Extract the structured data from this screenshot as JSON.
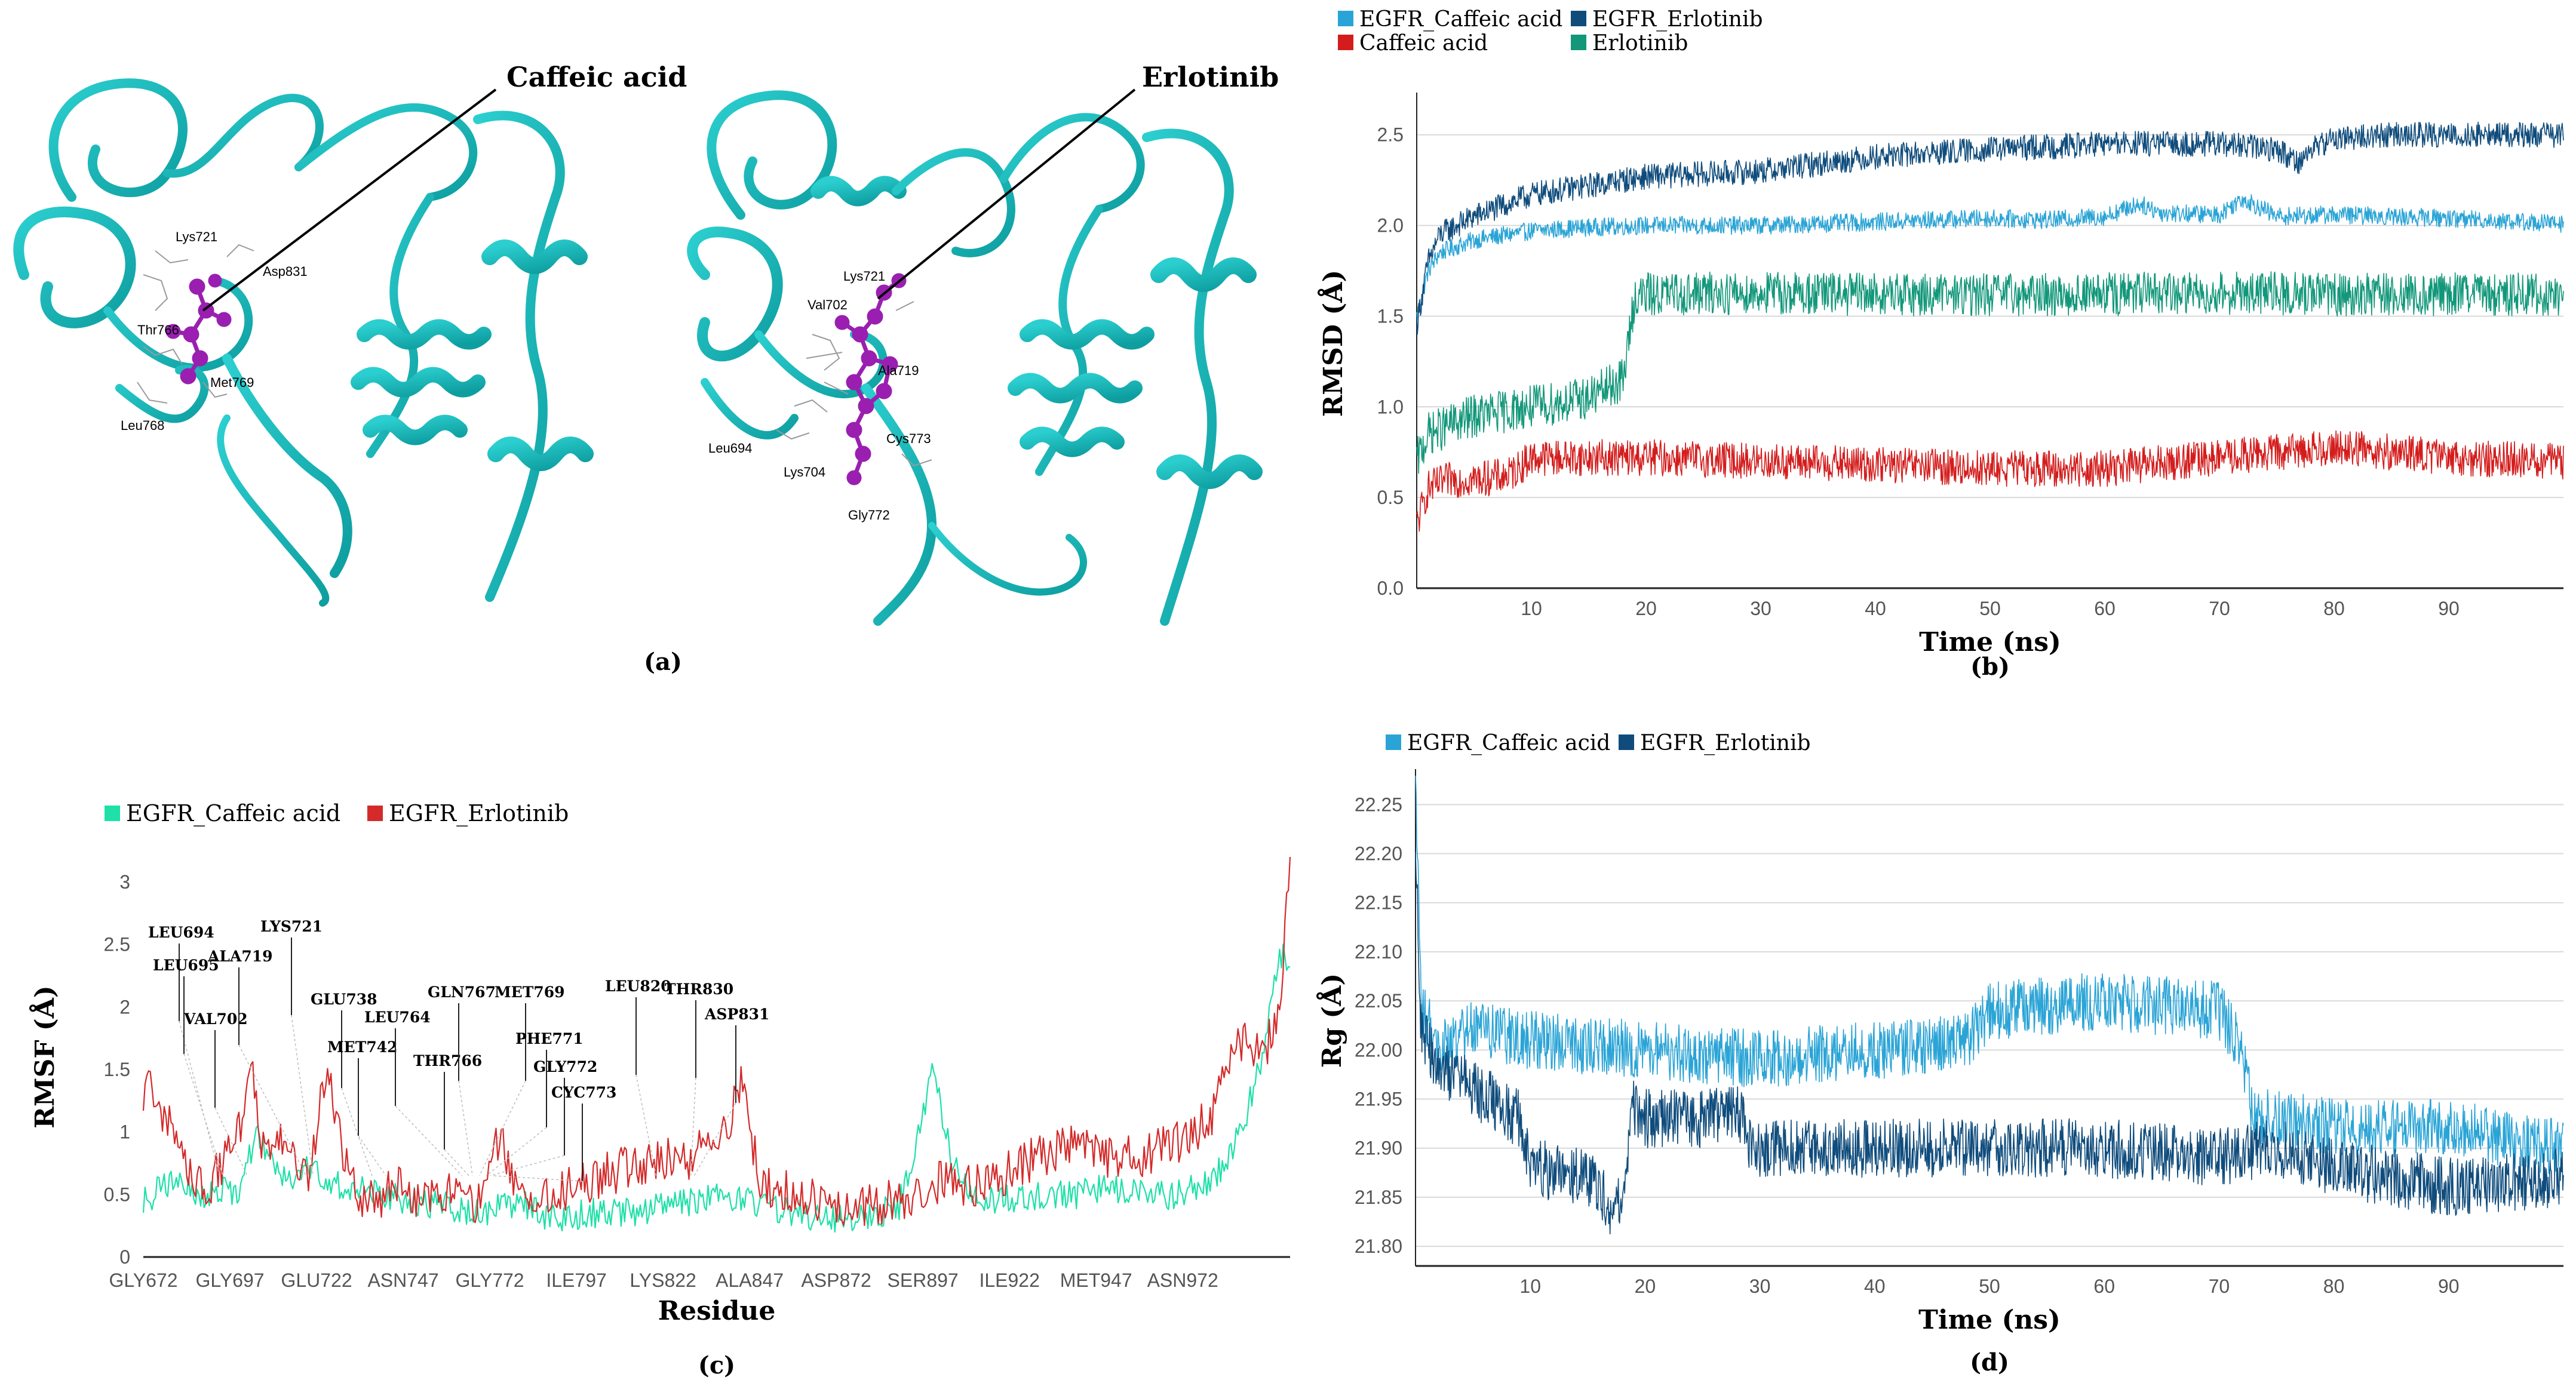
{
  "panel_a": {
    "caption": "(a)",
    "left": {
      "ligand_label": "Caffeic acid",
      "residues": [
        "Lys721",
        "Asp831",
        "Thr766",
        "Met769",
        "Leu768"
      ]
    },
    "right": {
      "ligand_label": "Erlotinib",
      "residues": [
        "Lys721",
        "Val702",
        "Ala719",
        "Cys773",
        "Leu694",
        "Lys704",
        "Gly772"
      ]
    },
    "colors": {
      "protein": "#14aeb0",
      "ligand": "#9a1fb0"
    }
  },
  "chart_data": [
    {
      "id": "b",
      "caption": "(b)",
      "type": "line",
      "title": "",
      "xlabel": "Time (ns)",
      "ylabel": "RMSD (Å)",
      "xlim": [
        0,
        100
      ],
      "ylim": [
        0,
        2.7
      ],
      "xticks": [
        10,
        20,
        30,
        40,
        50,
        60,
        70,
        80,
        90
      ],
      "yticks": [
        0.0,
        0.5,
        1.0,
        1.5,
        2.0,
        2.5
      ],
      "ytick_labels": [
        "0.0",
        "0.5",
        "1.0",
        "1.5",
        "2.0",
        "2.5"
      ],
      "grid": true,
      "legend": "top-left",
      "series": [
        {
          "name": "EGFR_Caffeic acid",
          "color": "#2aa4d6",
          "x": [
            0,
            1,
            2,
            5,
            10,
            15,
            20,
            30,
            40,
            50,
            55,
            60,
            63,
            65,
            70,
            72,
            75,
            80,
            90,
            100
          ],
          "y": [
            1.5,
            1.75,
            1.85,
            1.92,
            1.97,
            1.99,
            2.0,
            2.0,
            2.02,
            2.04,
            2.03,
            2.05,
            2.12,
            2.07,
            2.06,
            2.15,
            2.05,
            2.06,
            2.04,
            2.01
          ],
          "noise": 0.05
        },
        {
          "name": "EGFR_Erlotinib",
          "color": "#0f4c7c",
          "x": [
            0,
            1,
            2,
            5,
            10,
            15,
            20,
            30,
            40,
            50,
            60,
            70,
            75,
            77,
            78,
            80,
            85,
            90,
            100
          ],
          "y": [
            1.45,
            1.8,
            1.95,
            2.05,
            2.17,
            2.22,
            2.27,
            2.3,
            2.38,
            2.42,
            2.45,
            2.45,
            2.42,
            2.35,
            2.42,
            2.48,
            2.5,
            2.5,
            2.5
          ],
          "noise": 0.07
        },
        {
          "name": "Caffeic acid",
          "color": "#d41c1c",
          "x": [
            0,
            1,
            3,
            5,
            8,
            10,
            15,
            20,
            30,
            40,
            50,
            60,
            70,
            80,
            90,
            100
          ],
          "y": [
            0.35,
            0.55,
            0.6,
            0.6,
            0.62,
            0.72,
            0.72,
            0.72,
            0.7,
            0.68,
            0.66,
            0.66,
            0.72,
            0.78,
            0.72,
            0.7
          ],
          "noise": 0.1
        },
        {
          "name": "Erlotinib",
          "color": "#12977a",
          "x": [
            0,
            1,
            5,
            10,
            15,
            18,
            19,
            20,
            30,
            40,
            50,
            60,
            70,
            80,
            90,
            100
          ],
          "y": [
            0.7,
            0.85,
            0.95,
            1.0,
            1.05,
            1.15,
            1.6,
            1.62,
            1.63,
            1.62,
            1.62,
            1.62,
            1.63,
            1.62,
            1.62,
            1.62
          ],
          "noise": 0.12
        }
      ]
    },
    {
      "id": "c",
      "caption": "(c)",
      "type": "line",
      "title": "",
      "xlabel": "Residue",
      "ylabel": "RMSF (Å)",
      "ylim": [
        0,
        3.2
      ],
      "yticks": [
        0,
        0.5,
        1,
        1.5,
        2,
        2.5,
        3
      ],
      "ytick_labels": [
        "0",
        "0.5",
        "1",
        "1.5",
        "2",
        "2.5",
        "3"
      ],
      "categories": [
        "GLY672",
        "GLY697",
        "GLU722",
        "ASN747",
        "GLY772",
        "ILE797",
        "LYS822",
        "ALA847",
        "ASP872",
        "SER897",
        "ILE922",
        "MET947",
        "ASN972"
      ],
      "residue_range": [
        672,
        1003
      ],
      "grid": false,
      "legend": "top-left",
      "series": [
        {
          "name": "EGFR_Caffeic acid",
          "color": "#1ee0a8",
          "x": [
            672,
            680,
            690,
            700,
            705,
            712,
            720,
            730,
            740,
            750,
            760,
            770,
            780,
            790,
            800,
            810,
            820,
            830,
            840,
            850,
            860,
            870,
            880,
            890,
            895,
            900,
            905,
            910,
            920,
            930,
            940,
            950,
            960,
            970,
            980,
            985,
            990,
            995,
            1000,
            1003
          ],
          "y": [
            0.45,
            0.6,
            0.5,
            0.55,
            1.0,
            0.6,
            0.7,
            0.55,
            0.5,
            0.45,
            0.4,
            0.35,
            0.45,
            0.3,
            0.35,
            0.35,
            0.4,
            0.45,
            0.5,
            0.4,
            0.35,
            0.3,
            0.3,
            0.4,
            0.9,
            1.55,
            0.8,
            0.5,
            0.45,
            0.5,
            0.5,
            0.55,
            0.5,
            0.5,
            0.6,
            0.8,
            1.1,
            1.6,
            2.45,
            2.3
          ],
          "noise": 0.12
        },
        {
          "name": "EGFR_Erlotinib",
          "color": "#d42a2a",
          "x": [
            672,
            675,
            680,
            690,
            700,
            703,
            706,
            712,
            720,
            725,
            730,
            735,
            740,
            745,
            750,
            760,
            770,
            775,
            780,
            790,
            800,
            810,
            820,
            830,
            840,
            845,
            850,
            860,
            870,
            880,
            890,
            900,
            910,
            920,
            930,
            940,
            950,
            960,
            970,
            980,
            985,
            990,
            995,
            1000,
            1003
          ],
          "y": [
            1.3,
            1.35,
            1.0,
            0.5,
            1.0,
            1.7,
            0.9,
            0.9,
            0.6,
            1.55,
            0.8,
            0.5,
            0.45,
            0.6,
            0.5,
            0.5,
            0.4,
            1.0,
            0.5,
            0.5,
            0.6,
            0.7,
            0.8,
            0.8,
            1.0,
            1.4,
            0.6,
            0.5,
            0.4,
            0.4,
            0.45,
            0.6,
            0.55,
            0.65,
            0.8,
            0.9,
            0.8,
            0.8,
            0.9,
            1.1,
            1.5,
            1.8,
            1.55,
            2.0,
            3.2
          ],
          "noise": 0.18
        }
      ],
      "annotations": [
        {
          "label": "LEU694",
          "residue": 694
        },
        {
          "label": "LEU695",
          "residue": 695
        },
        {
          "label": "VAL702",
          "residue": 702
        },
        {
          "label": "ALA719",
          "residue": 719
        },
        {
          "label": "LYS721",
          "residue": 721
        },
        {
          "label": "GLU738",
          "residue": 738
        },
        {
          "label": "MET742",
          "residue": 742
        },
        {
          "label": "LEU764",
          "residue": 764
        },
        {
          "label": "THR766",
          "residue": 766
        },
        {
          "label": "GLN767",
          "residue": 767
        },
        {
          "label": "MET769",
          "residue": 769
        },
        {
          "label": "PHE771",
          "residue": 771
        },
        {
          "label": "GLY772",
          "residue": 772
        },
        {
          "label": "CYC773",
          "residue": 773
        },
        {
          "label": "LEU820",
          "residue": 820
        },
        {
          "label": "THR830",
          "residue": 830
        },
        {
          "label": "ASP831",
          "residue": 831
        }
      ]
    },
    {
      "id": "d",
      "caption": "(d)",
      "type": "line",
      "title": "",
      "xlabel": "Time (ns)",
      "ylabel": "Rg (Å)",
      "xlim": [
        0,
        100
      ],
      "ylim": [
        21.78,
        22.28
      ],
      "xticks": [
        10,
        20,
        30,
        40,
        50,
        60,
        70,
        80,
        90
      ],
      "yticks": [
        21.8,
        21.85,
        21.9,
        21.95,
        22.0,
        22.05,
        22.1,
        22.15,
        22.2,
        22.25
      ],
      "ytick_labels": [
        "21.80",
        "21.85",
        "21.90",
        "21.95",
        "22.00",
        "22.05",
        "22.10",
        "22.15",
        "22.20",
        "22.25"
      ],
      "grid": true,
      "legend": "top-left",
      "series": [
        {
          "name": "EGFR_Caffeic acid",
          "color": "#2aa4d6",
          "x": [
            0,
            0.5,
            2,
            5,
            10,
            20,
            30,
            40,
            48,
            50,
            60,
            70,
            72,
            73,
            75,
            80,
            90,
            100
          ],
          "y": [
            22.28,
            22.05,
            22.0,
            22.02,
            22.01,
            22.0,
            21.99,
            22.0,
            22.01,
            22.04,
            22.05,
            22.04,
            22.0,
            21.93,
            21.93,
            21.92,
            21.92,
            21.9
          ],
          "noise": 0.03
        },
        {
          "name": "EGFR_Erlotinib",
          "color": "#0f4c7c",
          "x": [
            0,
            0.5,
            2,
            5,
            9,
            10,
            15,
            17,
            18,
            19,
            20,
            25,
            28,
            29,
            30,
            40,
            50,
            60,
            70,
            75,
            80,
            90,
            100
          ],
          "y": [
            22.2,
            22.02,
            21.98,
            21.96,
            21.93,
            21.88,
            21.87,
            21.84,
            21.84,
            21.94,
            21.93,
            21.93,
            21.94,
            21.91,
            21.9,
            21.9,
            21.9,
            21.9,
            21.89,
            21.9,
            21.88,
            21.86,
            21.87
          ],
          "noise": 0.03
        }
      ]
    }
  ]
}
